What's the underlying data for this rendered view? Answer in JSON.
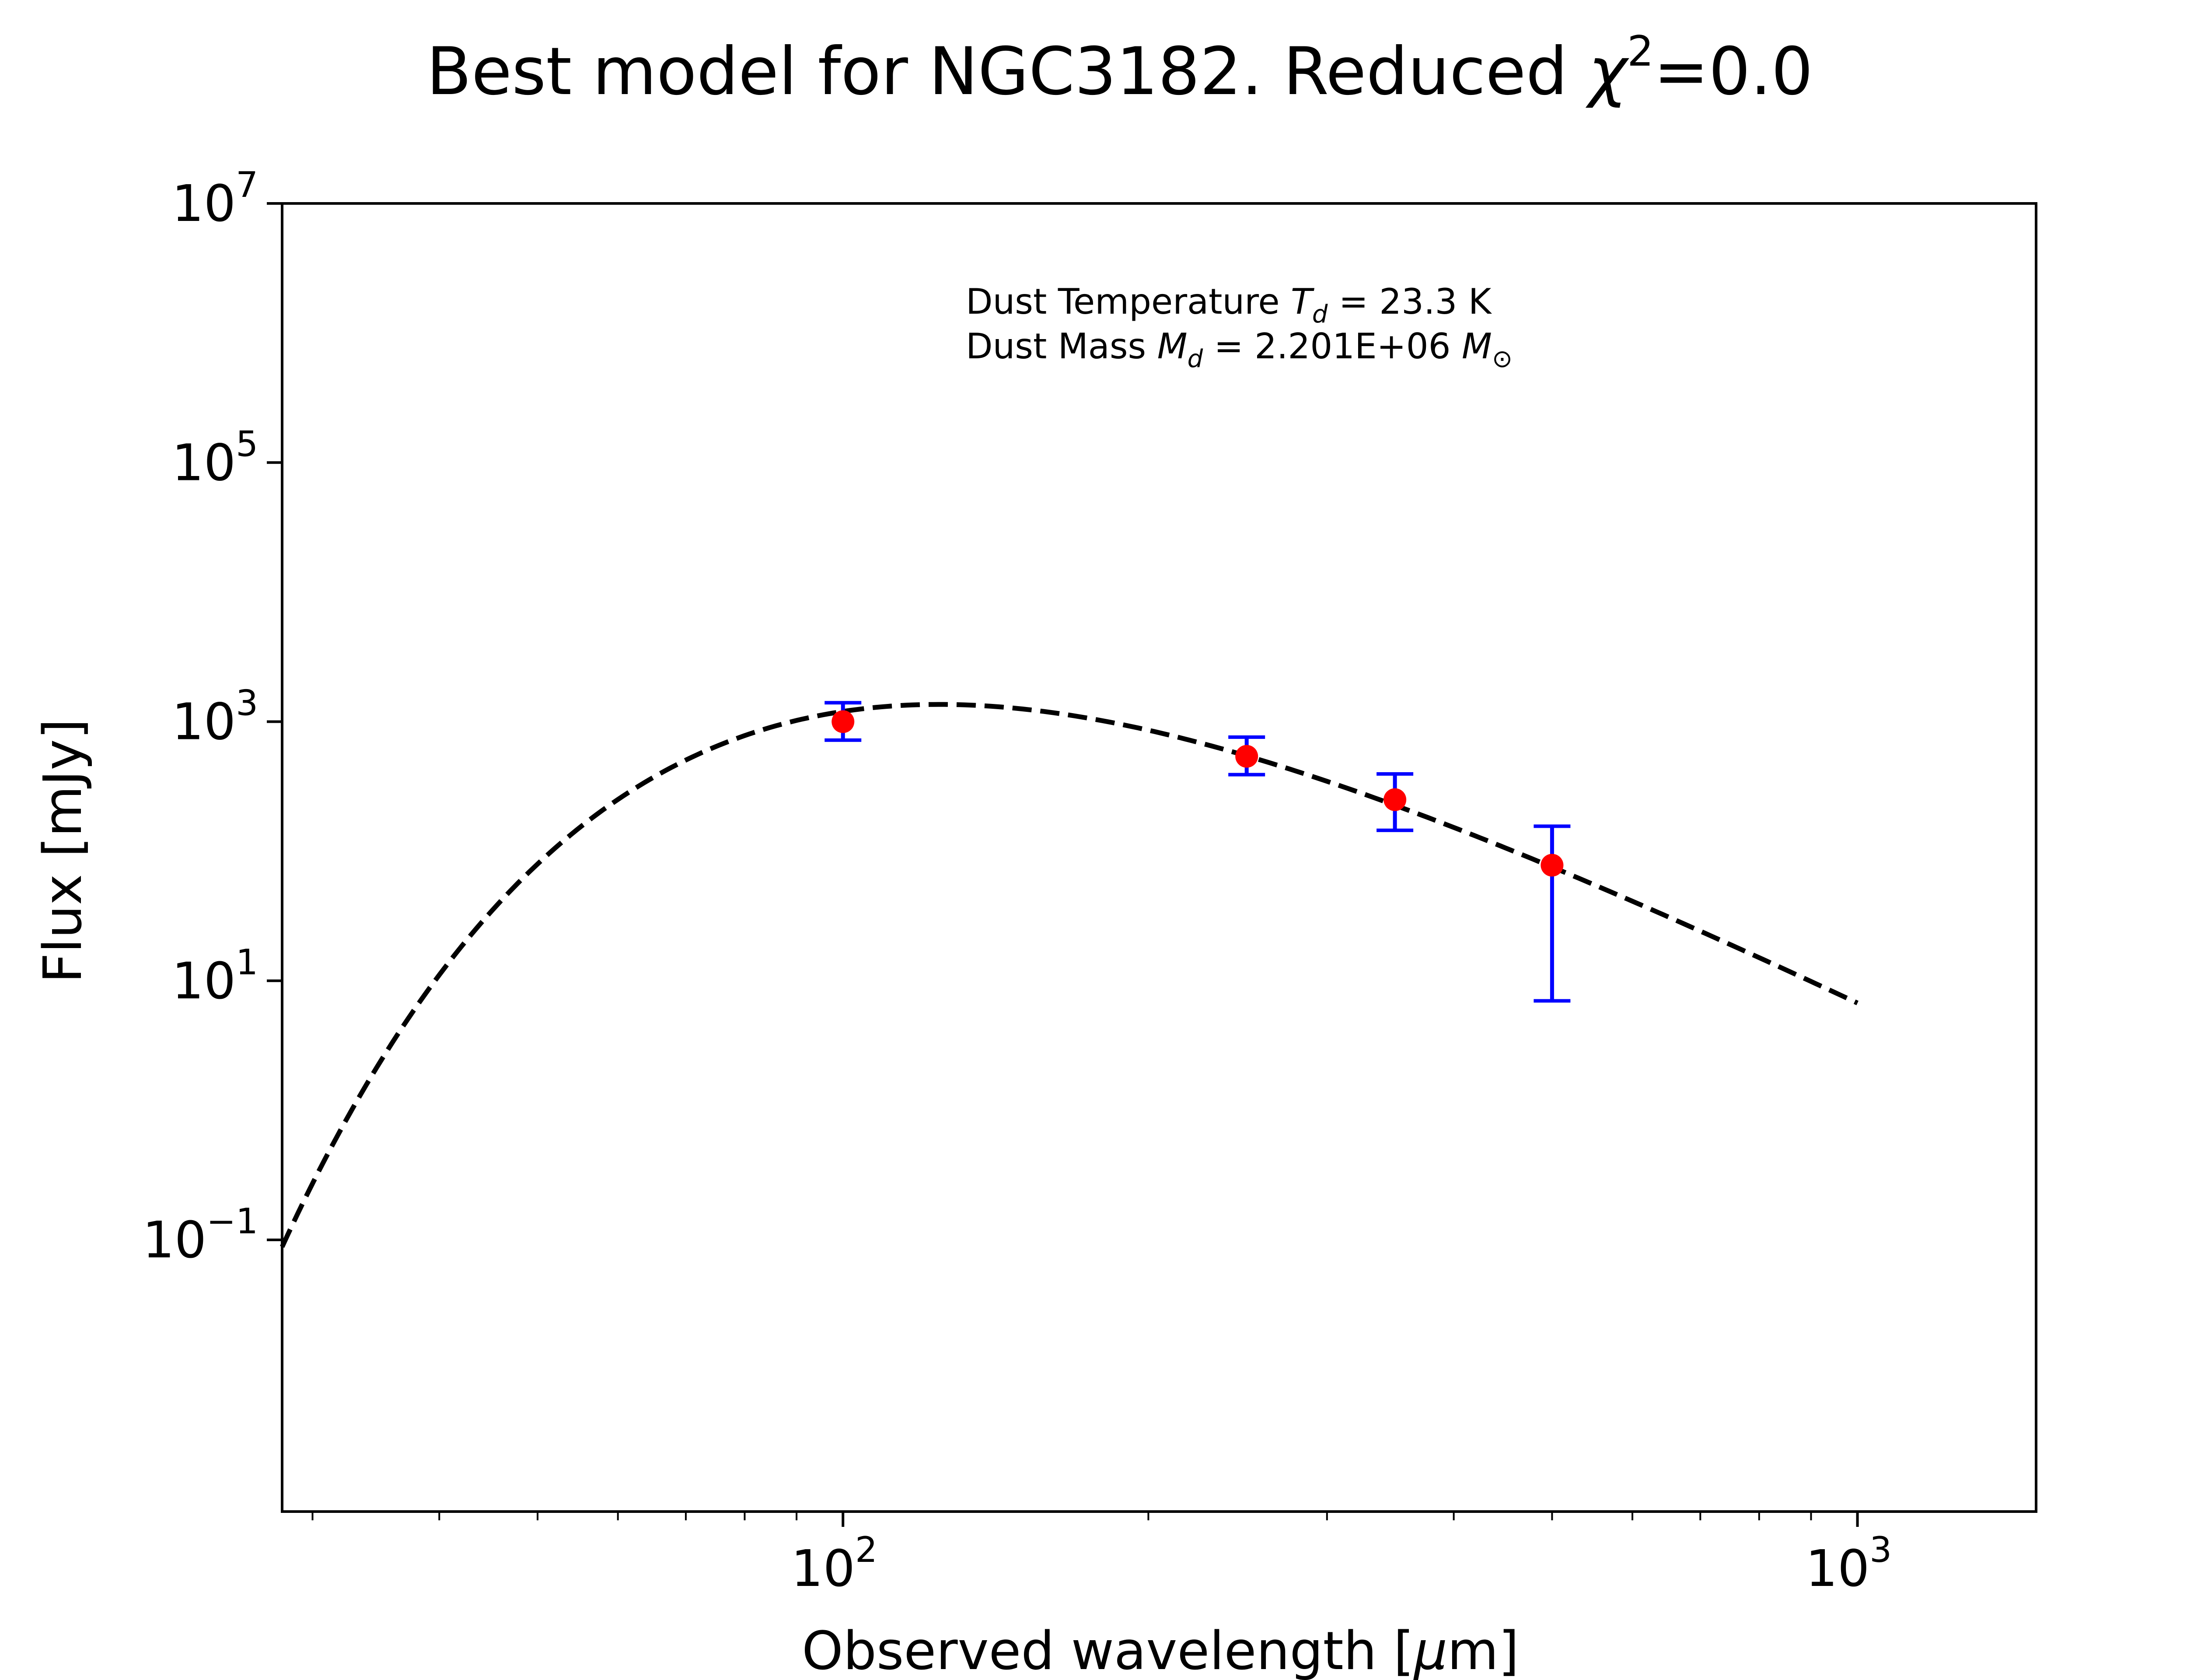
{
  "chart_data": {
    "type": "scatter",
    "title_text": "Best model for NGC3182. Reduced ",
    "title_chi": "χ",
    "title_chi_sup": "2",
    "title_suffix": "=0.0",
    "xlabel_prefix": "Observed wavelength [",
    "xlabel_mu": "μ",
    "xlabel_suffix": "m]",
    "ylabel": "Flux [mJy]",
    "xscale": "log",
    "yscale": "log",
    "xlim": [
      28,
      1500
    ],
    "ylim": [
      0.0008,
      10000000
    ],
    "grid": false,
    "x_ticks": [
      {
        "base": "10",
        "exp": "2",
        "value": 100
      },
      {
        "base": "10",
        "exp": "3",
        "value": 1000
      }
    ],
    "y_ticks": [
      {
        "base": "10",
        "exp": "7",
        "value": 10000000
      },
      {
        "base": "10",
        "exp": "5",
        "value": 100000
      },
      {
        "base": "10",
        "exp": "3",
        "value": 1000
      },
      {
        "base": "10",
        "exp": "1",
        "value": 10
      },
      {
        "base": "10",
        "exp": "−1",
        "value": 0.1
      }
    ],
    "annotations": {
      "temp_prefix": "Dust Temperature ",
      "temp_sym": "T",
      "temp_sub": "d",
      "temp_value": " = 23.3 K",
      "mass_prefix": "Dust Mass ",
      "mass_sym": "M",
      "mass_sub": "d",
      "mass_value": " = 2.201E+06 ",
      "mass_unit_sym": "M",
      "mass_unit_sub": "⊙"
    },
    "model": {
      "name": "",
      "style": "dashed",
      "color": "#000000",
      "temperature_K": 23.3,
      "beta": 2,
      "x_range": [
        28,
        1000
      ],
      "peak": {
        "x": 131,
        "y": 1350
      }
    },
    "observations": {
      "color": "#ff0000",
      "errorbar_color": "#0000ff",
      "points": [
        {
          "x": 100,
          "y": 1000,
          "yerr_low": 280,
          "yerr_high": 400
        },
        {
          "x": 250,
          "y": 540,
          "yerr_low": 150,
          "yerr_high": 220
        },
        {
          "x": 350,
          "y": 250,
          "yerr_low": 105,
          "yerr_high": 145
        },
        {
          "x": 500,
          "y": 78,
          "yerr_low": 71,
          "yerr_high": 78
        }
      ]
    }
  }
}
